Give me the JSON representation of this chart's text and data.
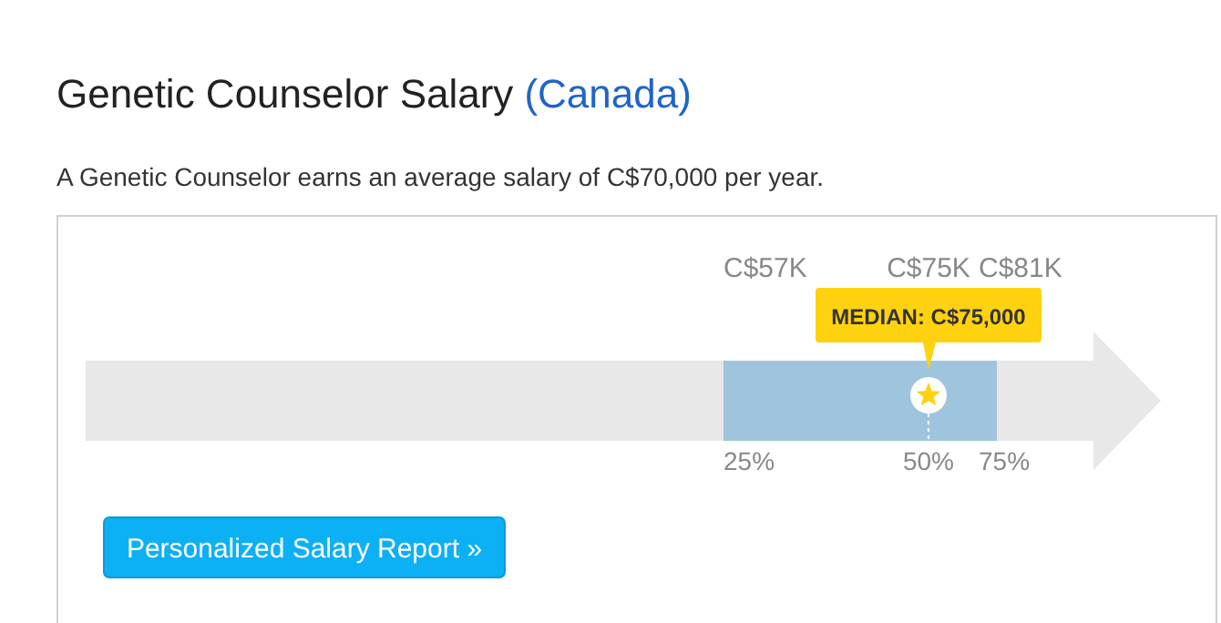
{
  "chart_data": {
    "type": "other",
    "title": "Genetic Counselor Salary",
    "subtitle": "(Canada)",
    "categories": [
      "25%",
      "50%",
      "75%"
    ],
    "values": [
      57000,
      75000,
      81000
    ],
    "value_labels": [
      "C$57K",
      "C$75K",
      "C$81K"
    ],
    "colors": [
      "#9fc4de",
      "#ffd20f",
      "#9fc4de"
    ],
    "annotations": [
      "A Genetic Counselor earns an average salary of C$70,000 per year.",
      "MEDIAN: C$75,000",
      "Personalized Salary Report »"
    ]
  }
}
